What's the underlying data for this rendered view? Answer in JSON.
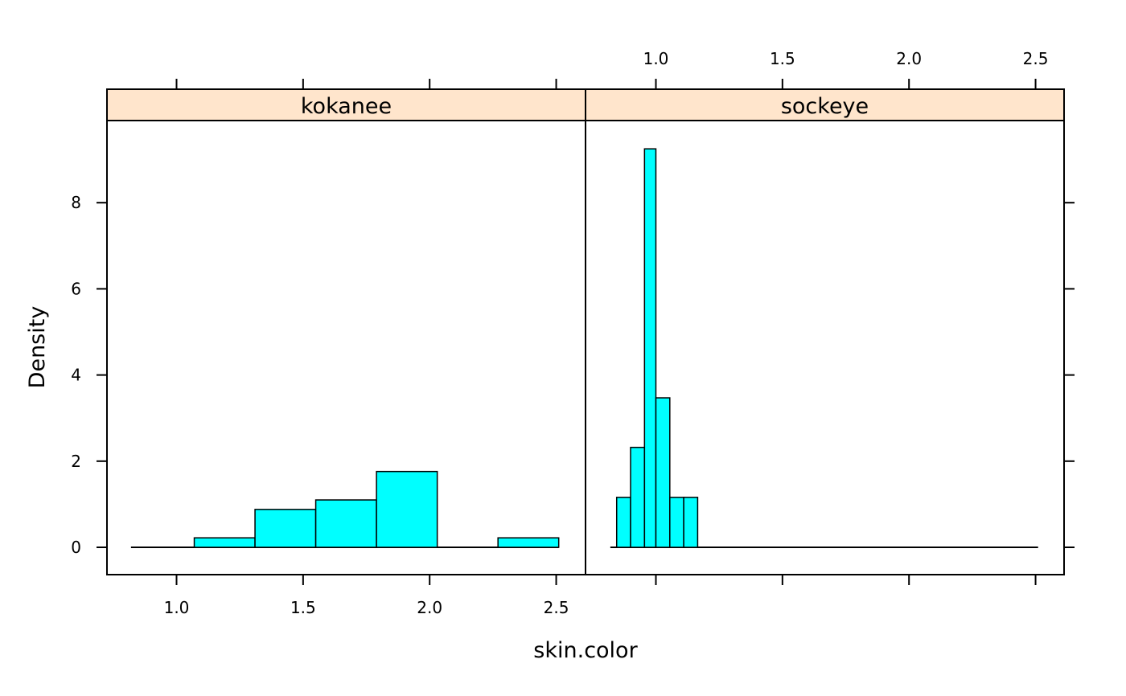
{
  "chart_data": {
    "type": "bar",
    "xlabel": "skin.color",
    "ylabel": "Density",
    "x_ticks": [
      "1.0",
      "1.5",
      "2.0",
      "2.5"
    ],
    "y_ticks": [
      "0",
      "2",
      "4",
      "6",
      "8"
    ],
    "xlim": [
      0.73,
      2.63
    ],
    "ylim": [
      -0.63,
      9.85
    ],
    "colors": {
      "bar_fill": "#00FFFF",
      "strip_bg": "#FFE5CC",
      "stroke": "#000000"
    },
    "panels": [
      {
        "name": "kokanee",
        "baseline_range": [
          0.82,
          2.51
        ],
        "bins": [
          {
            "x0": 1.07,
            "x1": 1.31,
            "density": 0.22
          },
          {
            "x0": 1.31,
            "x1": 1.55,
            "density": 0.88
          },
          {
            "x0": 1.55,
            "x1": 1.79,
            "density": 1.1
          },
          {
            "x0": 1.79,
            "x1": 2.03,
            "density": 1.76
          },
          {
            "x0": 2.03,
            "x1": 2.27,
            "density": 0
          },
          {
            "x0": 2.27,
            "x1": 2.51,
            "density": 0.22
          }
        ]
      },
      {
        "name": "sockeye",
        "baseline_range": [
          0.82,
          2.51
        ],
        "bins": [
          {
            "x0": 0.845,
            "x1": 0.9,
            "density": 1.16
          },
          {
            "x0": 0.9,
            "x1": 0.955,
            "density": 2.32
          },
          {
            "x0": 0.955,
            "x1": 1.0,
            "density": 9.25
          },
          {
            "x0": 1.0,
            "x1": 1.055,
            "density": 3.47
          },
          {
            "x0": 1.055,
            "x1": 1.11,
            "density": 1.16
          },
          {
            "x0": 1.11,
            "x1": 1.165,
            "density": 1.16
          }
        ]
      }
    ]
  }
}
